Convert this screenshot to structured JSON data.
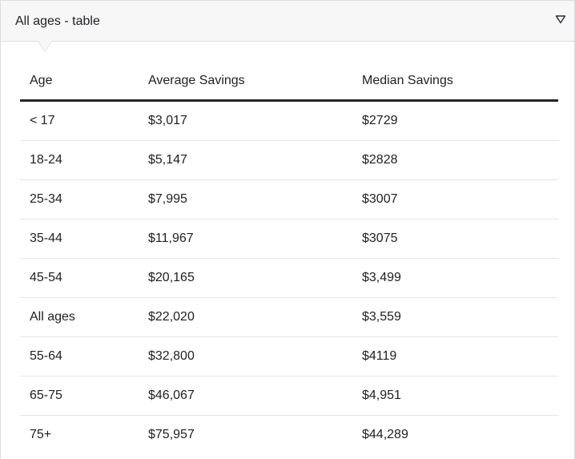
{
  "dropdown": {
    "selected": "All ages - table",
    "icon": "triangle-down-icon"
  },
  "table": {
    "headers": [
      "Age",
      "Average Savings",
      "Median Savings"
    ],
    "rows": [
      [
        "< 17",
        "$3,017",
        "$2729"
      ],
      [
        "18-24",
        "$5,147",
        "$2828"
      ],
      [
        "25-34",
        "$7,995",
        "$3007"
      ],
      [
        "35-44",
        "$11,967",
        "$3075"
      ],
      [
        "45-54",
        "$20,165",
        "$3,499"
      ],
      [
        "All ages",
        "$22,020",
        "$3,559"
      ],
      [
        "55-64",
        "$32,800",
        "$4119"
      ],
      [
        "65-75",
        "$46,067",
        "$4,951"
      ],
      [
        "75+",
        "$75,957",
        "$44,289"
      ]
    ]
  }
}
